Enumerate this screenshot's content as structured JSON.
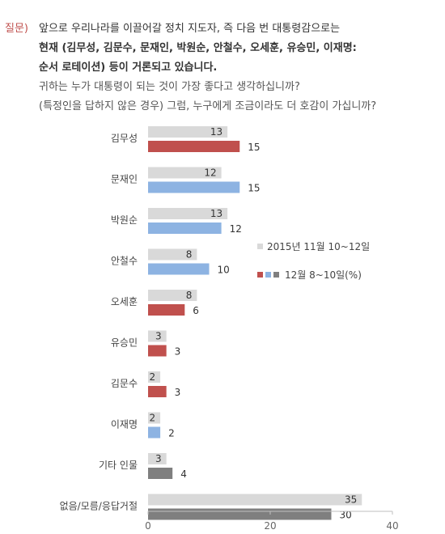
{
  "question": {
    "tag": "질문)",
    "lines": [
      "앞으로 우리나라를 이끌어갈 정치 지도자, 즉 다음 번 대통령감으로는",
      "현재 (김무성, 김문수, 문재인, 박원순, 안철수, 오세훈, 유승민, 이재명:",
      "순서 로테이션) 등이 거론되고 있습니다.",
      "귀하는 누가 대통령이 되는 것이 가장 좋다고 생각하십니까?",
      "(특정인을 답하지 않은 경우) 그럼, 누구에게 조금이라도 더 호감이 가십니까?"
    ]
  },
  "chart_data": {
    "type": "bar",
    "orientation": "horizontal",
    "categories": [
      "김무성",
      "문재인",
      "박원순",
      "안철수",
      "오세훈",
      "유승민",
      "김문수",
      "이재명",
      "기타 인물",
      "없음/모름/응답거절"
    ],
    "series": [
      {
        "name": "2015년 11월 10~12일",
        "values": [
          13,
          12,
          13,
          8,
          8,
          3,
          2,
          2,
          3,
          35
        ]
      },
      {
        "name": "12월 8~10일(%)",
        "values": [
          15,
          15,
          12,
          10,
          6,
          3,
          3,
          2,
          4,
          30
        ]
      }
    ],
    "xlim": [
      0,
      40
    ],
    "xticks": [
      0,
      20,
      40
    ],
    "grid": false,
    "legend_position": "right",
    "colors": {
      "prev": "#d9d9d9",
      "curr_red": "#c0504d",
      "curr_blue": "#8db3e2",
      "curr_gray": "#7f7f7f",
      "axis": "#bfbfbf"
    },
    "current_color_keys": [
      "curr_red",
      "curr_blue",
      "curr_blue",
      "curr_blue",
      "curr_red",
      "curr_red",
      "curr_red",
      "curr_blue",
      "curr_gray",
      "curr_gray"
    ]
  }
}
